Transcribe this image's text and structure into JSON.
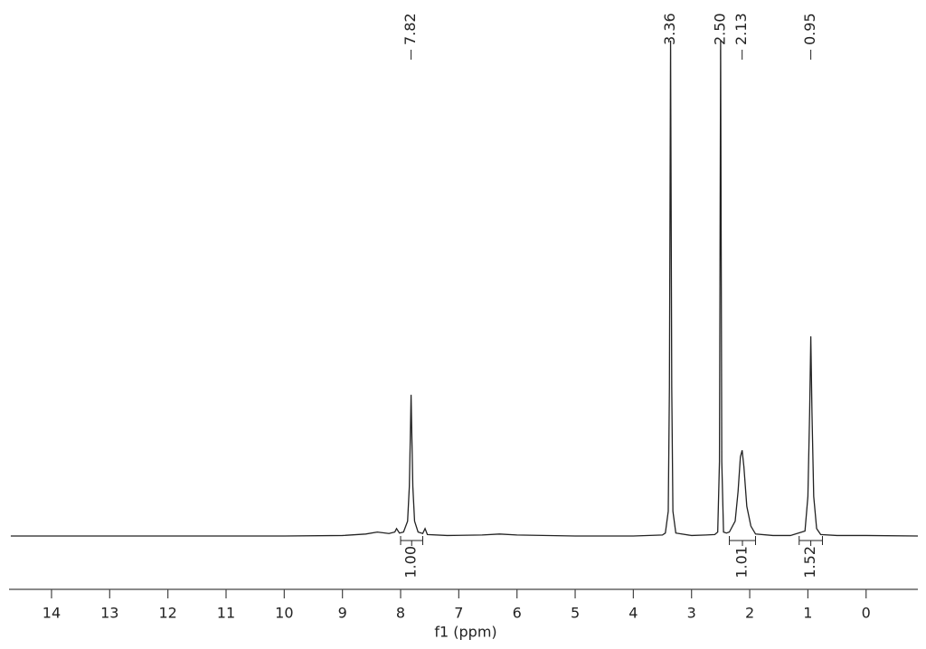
{
  "chart_data": {
    "type": "nmr",
    "xlabel": "f1 (ppm)",
    "xlim": [
      14.73,
      -0.89
    ],
    "xticks": [
      14,
      13,
      12,
      11,
      10,
      9,
      8,
      7,
      6,
      5,
      4,
      3,
      2,
      1,
      0
    ],
    "ylim": [
      0,
      100
    ],
    "color": "#222222",
    "x": [
      14.7,
      12.0,
      10.0,
      9.0,
      8.6,
      8.4,
      8.2,
      8.1,
      8.07,
      8.02,
      7.95,
      7.88,
      7.85,
      7.83,
      7.82,
      7.81,
      7.79,
      7.76,
      7.7,
      7.62,
      7.58,
      7.54,
      7.2,
      6.6,
      6.3,
      6.0,
      5.0,
      4.0,
      3.5,
      3.45,
      3.4,
      3.38,
      3.36,
      3.34,
      3.32,
      3.27,
      3.0,
      2.75,
      2.6,
      2.55,
      2.52,
      2.5,
      2.48,
      2.45,
      2.4,
      2.35,
      2.25,
      2.2,
      2.16,
      2.13,
      2.1,
      2.05,
      1.98,
      1.9,
      1.6,
      1.3,
      1.05,
      1.0,
      0.97,
      0.95,
      0.93,
      0.9,
      0.85,
      0.78,
      0.5,
      0.0,
      -0.89
    ],
    "values": [
      0,
      0,
      0,
      0.1,
      0.4,
      0.8,
      0.5,
      0.8,
      1.5,
      0.6,
      0.8,
      3,
      10,
      22,
      28.5,
      22,
      10,
      3,
      0.8,
      0.5,
      1.5,
      0.3,
      0.1,
      0.2,
      0.4,
      0.2,
      0,
      0,
      0.2,
      0.6,
      5,
      30,
      100,
      30,
      5,
      0.6,
      0.1,
      0.2,
      0.3,
      0.8,
      15,
      100,
      15,
      0.8,
      0.6,
      0.8,
      3,
      9,
      16,
      17.3,
      14,
      6,
      2,
      0.4,
      0.1,
      0.1,
      1,
      8,
      25,
      40.3,
      25,
      8,
      1.5,
      0.3,
      0.1,
      0.1,
      0
    ],
    "peak_labels": [
      7.82,
      3.36,
      {
        "value": 2.5,
        "label": "2.50"
      },
      2.13,
      0.95
    ],
    "integrals": [
      {
        "value": 1,
        "label": "1.00",
        "range": [
          8.0,
          7.62
        ]
      },
      {
        "value": 1.01,
        "label": "1.01",
        "range": [
          2.35,
          1.9
        ]
      },
      {
        "value": 1.52,
        "label": "1.52",
        "range": [
          1.15,
          0.75
        ]
      }
    ]
  }
}
